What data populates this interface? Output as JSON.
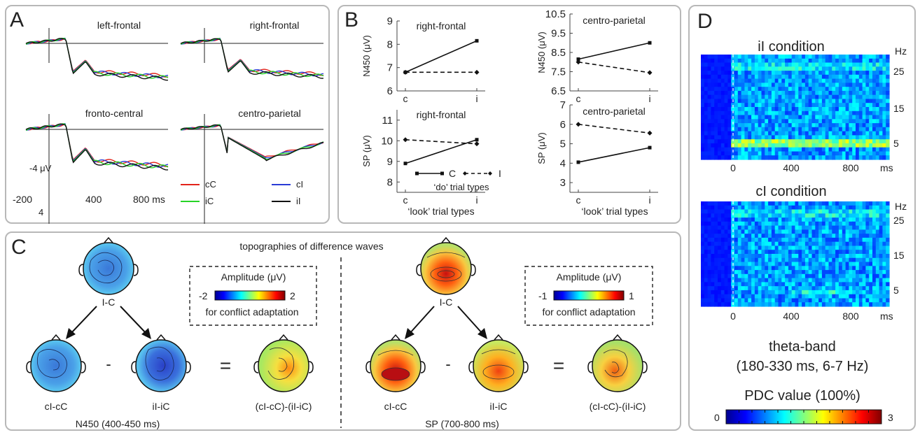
{
  "figure": {
    "panels": [
      "A",
      "B",
      "C",
      "D"
    ]
  },
  "panel_a": {
    "letter": "A",
    "titles": [
      "left-frontal",
      "right-frontal",
      "fronto-central",
      "centro-parietal"
    ],
    "y_scale_label": "-4 μV",
    "y_scale_top": "-4",
    "y_scale_bottom": "4",
    "x_ticks": [
      "-200",
      "400",
      "800 ms"
    ],
    "legend": [
      {
        "label": "cC",
        "color": "#e2231a"
      },
      {
        "label": "cI",
        "color": "#2a3bd6"
      },
      {
        "label": "iC",
        "color": "#27d327"
      },
      {
        "label": "iI",
        "color": "#111111"
      }
    ]
  },
  "panel_b": {
    "letter": "B",
    "xlabel": "‘look’ trial types",
    "x_ticks": [
      "c",
      "i"
    ],
    "legend_c": "C",
    "legend_i": "I",
    "legend_caption": "‘do’ trial types"
  },
  "chart_data": [
    {
      "type": "line",
      "title": "right-frontal",
      "ylabel": "N450 (μV)",
      "categories": [
        "c",
        "i"
      ],
      "ylim": [
        6,
        9
      ],
      "yticks": [
        "6",
        "7",
        "8",
        "9"
      ],
      "series": [
        {
          "name": "C",
          "values": [
            6.8,
            8.15
          ]
        },
        {
          "name": "I",
          "values": [
            6.8,
            6.8
          ]
        }
      ]
    },
    {
      "type": "line",
      "title": "centro-parietal",
      "ylabel": "N450 (μV)",
      "categories": [
        "c",
        "i"
      ],
      "ylim": [
        6.5,
        10.5
      ],
      "yticks": [
        "6.5",
        "7.5",
        "8.5",
        "9.5",
        "10.5"
      ],
      "series": [
        {
          "name": "C",
          "values": [
            8.15,
            9.0
          ]
        },
        {
          "name": "I",
          "values": [
            8.0,
            7.45
          ]
        }
      ]
    },
    {
      "type": "line",
      "title": "right-frontal",
      "ylabel": "SP (μV)",
      "categories": [
        "c",
        "i"
      ],
      "ylim": [
        7.5,
        11.5
      ],
      "yticks": [
        "8",
        "9",
        "10",
        "11"
      ],
      "series": [
        {
          "name": "C",
          "values": [
            8.9,
            10.05
          ]
        },
        {
          "name": "I",
          "values": [
            10.05,
            9.85
          ]
        }
      ]
    },
    {
      "type": "line",
      "title": "centro-parietal",
      "ylabel": "SP (μV)",
      "categories": [
        "c",
        "i"
      ],
      "ylim": [
        2.5,
        7
      ],
      "yticks": [
        "3",
        "4",
        "5",
        "6",
        "7"
      ],
      "series": [
        {
          "name": "C",
          "values": [
            4.05,
            4.8
          ]
        },
        {
          "name": "I",
          "values": [
            6.0,
            5.55
          ]
        }
      ]
    }
  ],
  "panel_c": {
    "letter": "C",
    "title": "topographies of difference waves",
    "left": {
      "top_label": "I-C",
      "bottom_labels": [
        "cI-cC",
        "iI-iC",
        "(cI-cC)-(iI-iC)"
      ],
      "minus": "-",
      "equals": "=",
      "caption": "N450 (400-450 ms)",
      "legend_title": "Amplitude (μV)",
      "legend_min": "-2",
      "legend_max": "2",
      "legend_caption": "for conflict adaptation"
    },
    "right": {
      "top_label": "I-C",
      "bottom_labels": [
        "cI-cC",
        "iI-iC",
        "(cI-cC)-(iI-iC)"
      ],
      "minus": "-",
      "equals": "=",
      "caption": "SP (700-800 ms)",
      "legend_title": "Amplitude (μV)",
      "legend_min": "-1",
      "legend_max": "1",
      "legend_caption": "for conflict adaptation"
    }
  },
  "panel_d": {
    "letter": "D",
    "top_title": "iI condition",
    "bottom_title": "cI condition",
    "y_unit": "Hz",
    "y_ticks": [
      "25",
      "15",
      "5"
    ],
    "x_ticks": [
      "0",
      "400",
      "800"
    ],
    "x_unit": "ms",
    "band_title": "theta-band",
    "band_range": "(180-330 ms, 6-7 Hz)",
    "colorbar_title": "PDC value (100%)",
    "colorbar_min": "0",
    "colorbar_max": "3"
  }
}
